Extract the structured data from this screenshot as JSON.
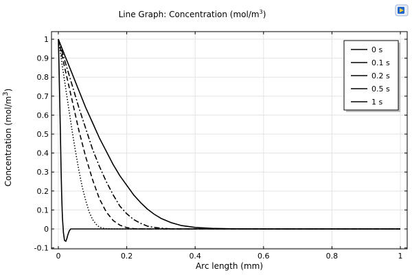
{
  "chart_data": {
    "type": "line",
    "title": "Line Graph: Concentration (mol/m",
    "title_sup": "3",
    "title_end": ")",
    "xlabel": "Arc length (mm)",
    "ylabel": "Concentration (mol/m",
    "ylabel_sup": "3",
    "ylabel_end": ")",
    "xlim": [
      -0.02,
      1.02
    ],
    "ylim": [
      -0.105,
      1.04
    ],
    "xticks": [
      0,
      0.2,
      0.4,
      0.6,
      0.8,
      1
    ],
    "xtick_labels": [
      "0",
      "0.2",
      "0.4",
      "0.6",
      "0.8",
      "1"
    ],
    "yticks": [
      -0.1,
      0,
      0.1,
      0.2,
      0.3,
      0.4,
      0.5,
      0.6,
      0.7,
      0.8,
      0.9,
      1
    ],
    "ytick_labels": [
      "-0.1",
      "0",
      "0.1",
      "0.2",
      "0.3",
      "0.4",
      "0.5",
      "0.6",
      "0.7",
      "0.8",
      "0.9",
      "1"
    ],
    "grid": true,
    "legend_position": "top-right",
    "series": [
      {
        "name": "0 s",
        "style": "solid",
        "x": [
          0,
          0.002,
          0.004,
          0.006,
          0.008,
          0.01,
          0.012,
          0.015,
          0.018,
          0.022,
          0.025,
          0.028,
          0.032,
          0.036,
          0.04,
          0.045,
          0.05,
          0.1,
          0.2,
          0.4,
          0.6,
          0.8,
          1.0
        ],
        "y": [
          1.0,
          0.85,
          0.68,
          0.5,
          0.32,
          0.17,
          0.06,
          -0.02,
          -0.06,
          -0.065,
          -0.05,
          -0.03,
          -0.01,
          0.0,
          0.0,
          0.0,
          0.0,
          0.0,
          0.0,
          0.0,
          0.0,
          0.0,
          0.0
        ]
      },
      {
        "name": "0.1 s",
        "style": "dotted",
        "x": [
          0,
          0.005,
          0.01,
          0.02,
          0.03,
          0.04,
          0.05,
          0.06,
          0.07,
          0.08,
          0.09,
          0.1,
          0.11,
          0.12,
          0.13,
          0.14,
          0.16,
          0.2,
          0.4,
          0.6,
          0.8,
          1.0
        ],
        "y": [
          1.0,
          0.94,
          0.88,
          0.76,
          0.64,
          0.52,
          0.41,
          0.31,
          0.22,
          0.15,
          0.09,
          0.05,
          0.025,
          0.01,
          0.004,
          0.001,
          0.0,
          0.0,
          0.0,
          0.0,
          0.0,
          0.0
        ]
      },
      {
        "name": "0.2 s",
        "style": "dashed",
        "x": [
          0,
          0.01,
          0.02,
          0.04,
          0.06,
          0.08,
          0.1,
          0.12,
          0.14,
          0.16,
          0.18,
          0.2,
          0.22,
          0.25,
          0.3,
          0.4,
          0.6,
          0.8,
          1.0
        ],
        "y": [
          1.0,
          0.92,
          0.84,
          0.68,
          0.52,
          0.38,
          0.26,
          0.16,
          0.09,
          0.045,
          0.02,
          0.007,
          0.002,
          0.0,
          0.0,
          0.0,
          0.0,
          0.0,
          0.0
        ]
      },
      {
        "name": "0.5 s",
        "style": "dashdot",
        "x": [
          0,
          0.02,
          0.04,
          0.06,
          0.08,
          0.1,
          0.12,
          0.14,
          0.16,
          0.18,
          0.2,
          0.22,
          0.24,
          0.26,
          0.28,
          0.3,
          0.32,
          0.35,
          0.4,
          0.6,
          0.8,
          1.0
        ],
        "y": [
          1.0,
          0.88,
          0.76,
          0.64,
          0.53,
          0.42,
          0.33,
          0.25,
          0.18,
          0.12,
          0.08,
          0.05,
          0.03,
          0.015,
          0.008,
          0.004,
          0.002,
          0.0,
          0.0,
          0.0,
          0.0,
          0.0
        ]
      },
      {
        "name": "1 s",
        "style": "solid",
        "x": [
          0,
          0.02,
          0.04,
          0.06,
          0.08,
          0.1,
          0.12,
          0.14,
          0.16,
          0.18,
          0.2,
          0.22,
          0.24,
          0.26,
          0.28,
          0.3,
          0.33,
          0.36,
          0.4,
          0.45,
          0.5,
          0.6,
          0.8,
          1.0
        ],
        "y": [
          1.0,
          0.91,
          0.82,
          0.73,
          0.64,
          0.56,
          0.48,
          0.41,
          0.34,
          0.28,
          0.23,
          0.18,
          0.14,
          0.105,
          0.078,
          0.056,
          0.033,
          0.018,
          0.008,
          0.003,
          0.001,
          0.0,
          0.0,
          0.0
        ]
      }
    ]
  }
}
